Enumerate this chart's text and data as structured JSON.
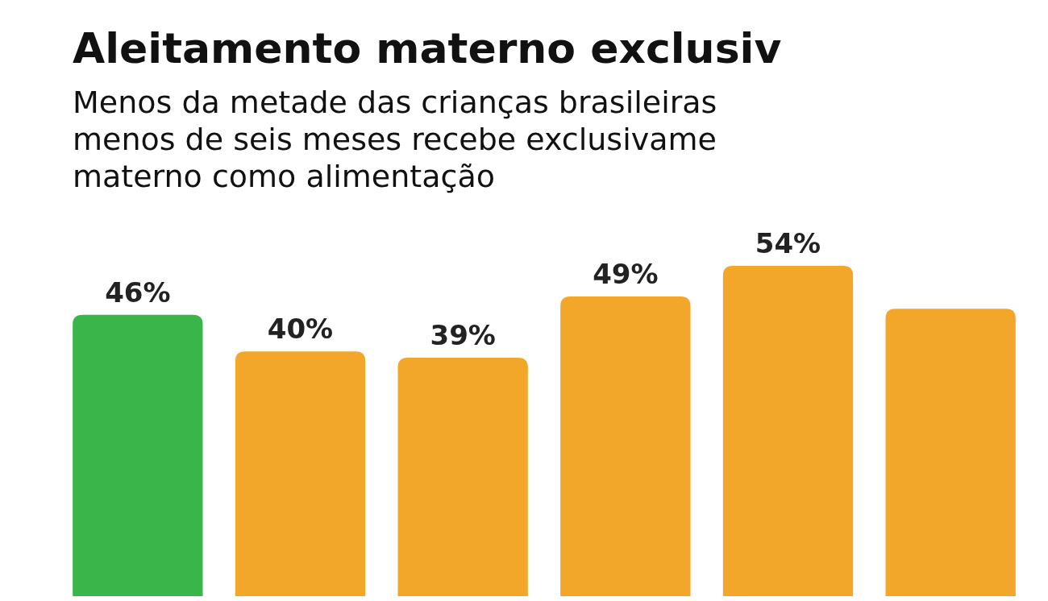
{
  "chart_data": {
    "type": "bar",
    "relative": false,
    "title": "Aleitamento materno exclusiv",
    "subtitle": "Menos da metade das crianças brasileiras\nmenos de seis meses recebe exclusivame\nmaterno como alimentação",
    "categories": [
      null,
      null,
      null,
      null,
      null,
      null
    ],
    "values": [
      46,
      40,
      39,
      49,
      54,
      47
    ],
    "value_labels": [
      "46%",
      "40%",
      "39%",
      "49%",
      "54%",
      null
    ],
    "colors": [
      "#3ab54a",
      "#f2a62a",
      "#f2a62a",
      "#f2a62a",
      "#f2a62a",
      "#f2a62a"
    ]
  }
}
